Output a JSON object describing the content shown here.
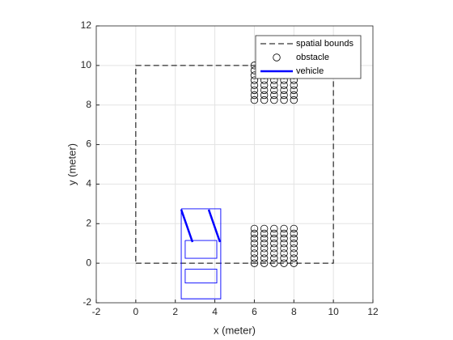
{
  "chart_data": {
    "type": "line",
    "xlabel": "x (meter)",
    "ylabel": "y (meter)",
    "xlim": [
      -2,
      12
    ],
    "ylim": [
      -2,
      12
    ],
    "xticks": [
      -2,
      0,
      2,
      4,
      6,
      8,
      10,
      12
    ],
    "yticks": [
      -2,
      0,
      2,
      4,
      6,
      8,
      10,
      12
    ],
    "grid": true,
    "legend": "northeast",
    "series": [
      {
        "name": "spatial bounds",
        "color": "#000000",
        "style": "dashed",
        "x": [
          0,
          10,
          10,
          0,
          0
        ],
        "y": [
          0,
          0,
          10,
          10,
          0
        ]
      },
      {
        "name": "obstacle",
        "color": "#000000",
        "marker": "o",
        "x": [
          6,
          6.5,
          7,
          7.5,
          8,
          6,
          6.5,
          7,
          7.5,
          8,
          6,
          6.5,
          7,
          7.5,
          8,
          6,
          6.5,
          7,
          7.5,
          8,
          6,
          6.5,
          7,
          7.5,
          8,
          6,
          6.5,
          7,
          7.5,
          8,
          6,
          6.5,
          7,
          7.5,
          8,
          6,
          6.5,
          7,
          7.5,
          8,
          6,
          6.5,
          7,
          7.5,
          8,
          6,
          6.5,
          7,
          7.5,
          8,
          6,
          6.5,
          7,
          7.5,
          8,
          6,
          6.5,
          7,
          7.5,
          8,
          6,
          6.5,
          7,
          7.5,
          8,
          6,
          6.5,
          7,
          7.5,
          8,
          6,
          6.5,
          7,
          7.5,
          8,
          6,
          6.5,
          7,
          7.5,
          8
        ],
        "y": [
          10,
          10,
          10,
          10,
          10,
          9.75,
          9.75,
          9.75,
          9.75,
          9.75,
          9.5,
          9.5,
          9.5,
          9.5,
          9.5,
          9.25,
          9.25,
          9.25,
          9.25,
          9.25,
          9,
          9,
          9,
          9,
          9,
          8.75,
          8.75,
          8.75,
          8.75,
          8.75,
          8.5,
          8.5,
          8.5,
          8.5,
          8.5,
          8.25,
          8.25,
          8.25,
          8.25,
          8.25,
          1.75,
          1.75,
          1.75,
          1.75,
          1.75,
          1.5,
          1.5,
          1.5,
          1.5,
          1.5,
          1.25,
          1.25,
          1.25,
          1.25,
          1.25,
          1,
          1,
          1,
          1,
          1,
          0.75,
          0.75,
          0.75,
          0.75,
          0.75,
          0.5,
          0.5,
          0.5,
          0.5,
          0.5,
          0.25,
          0.25,
          0.25,
          0.25,
          0.25,
          0,
          0,
          0,
          0,
          0
        ]
      },
      {
        "name": "vehicle",
        "color": "#0000ff",
        "linewidth": 2.5,
        "x": [
          2.3,
          2.87,
          null,
          3.69,
          4.26
        ],
        "y": [
          2.71,
          1.07,
          null,
          2.71,
          1.07
        ],
        "outline": {
          "x": [
            2.3,
            4.3,
            4.3,
            2.3,
            2.3,
            null,
            2.5,
            4.1,
            4.1,
            2.5,
            2.5,
            null,
            2.5,
            4.1,
            4.1,
            2.5,
            2.5
          ],
          "y": [
            2.75,
            2.75,
            -1.8,
            -1.8,
            2.75,
            null,
            1.15,
            1.15,
            0.25,
            0.25,
            1.15,
            null,
            -0.3,
            -0.3,
            -1.0,
            -1.0,
            -0.3
          ]
        }
      }
    ]
  }
}
